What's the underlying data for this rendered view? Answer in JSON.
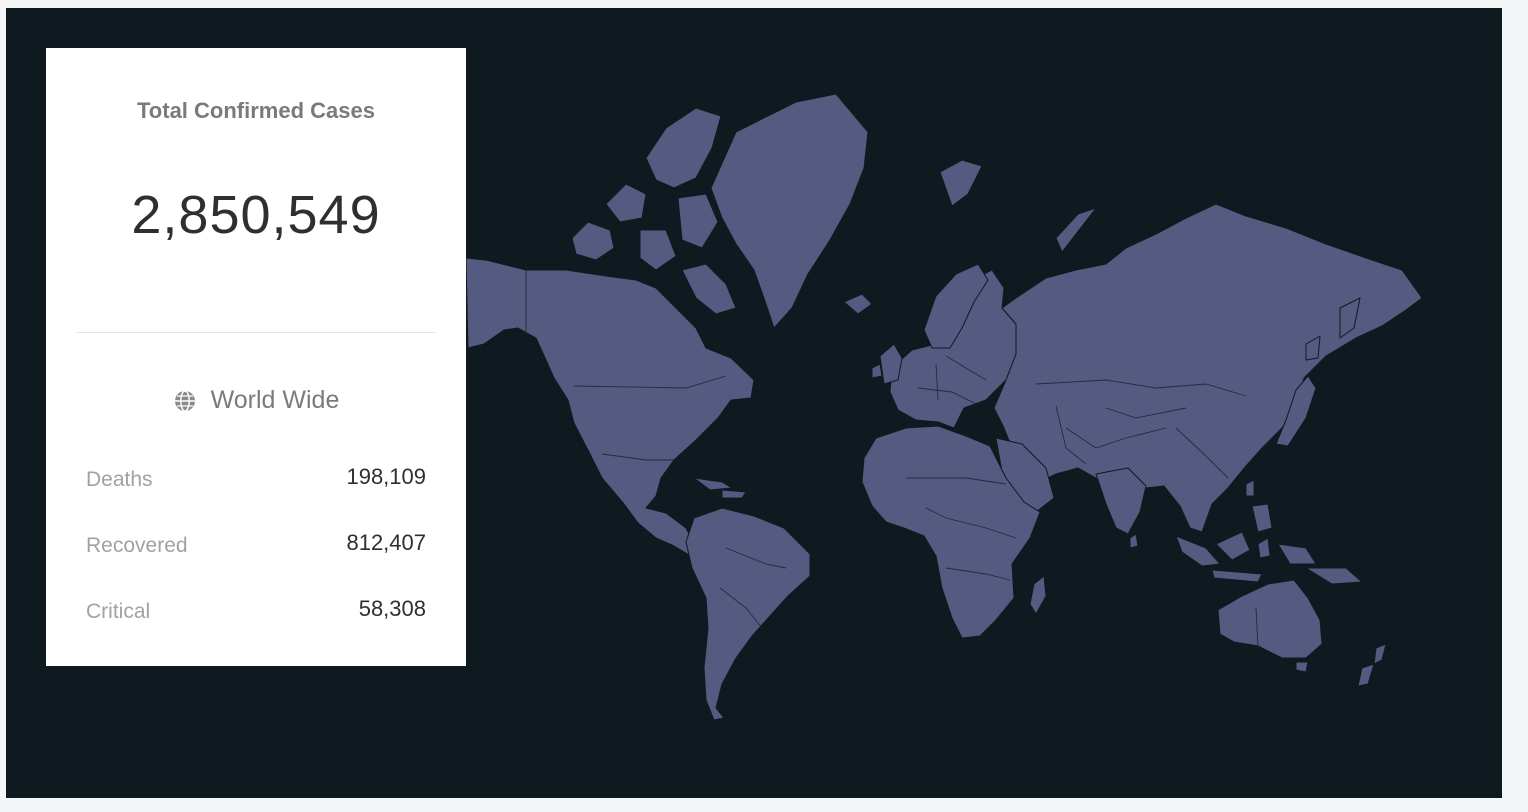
{
  "summary": {
    "title": "Total Confirmed Cases",
    "total": "2,850,549",
    "scope_icon": "globe-icon",
    "scope_label": "World Wide",
    "stats": [
      {
        "label": "Deaths",
        "value": "198,109"
      },
      {
        "label": "Recovered",
        "value": "812,407"
      },
      {
        "label": "Critical",
        "value": "58,308"
      }
    ]
  },
  "theme": {
    "background": "#0f1a20",
    "land": "#545a80",
    "card": "#ffffff"
  }
}
